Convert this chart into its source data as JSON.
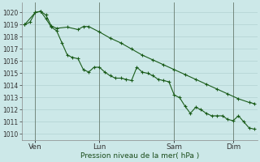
{
  "background_color": "#cce8e8",
  "grid_color": "#aacccc",
  "line_color": "#1a5c1a",
  "marker_color": "#1a5c1a",
  "xlabel": "Pression niveau de la mer( hPa )",
  "ylim": [
    1009.5,
    1020.8
  ],
  "yticks": [
    1010,
    1011,
    1012,
    1013,
    1014,
    1015,
    1016,
    1017,
    1018,
    1019,
    1020
  ],
  "xtick_labels": [
    "Ven",
    "Lun",
    "Sam",
    "Dim"
  ],
  "total_steps": 44,
  "vline_positions": [
    2,
    14,
    28,
    39
  ],
  "xtick_positions": [
    2,
    14,
    28,
    39
  ],
  "line1_x": [
    0,
    2,
    3,
    4,
    5,
    6,
    8,
    10,
    11,
    12,
    14,
    16,
    18,
    20,
    22,
    24,
    26,
    28,
    30,
    32,
    34,
    36,
    38,
    40,
    42,
    43
  ],
  "line1_y": [
    1019.0,
    1020.0,
    1020.1,
    1019.8,
    1018.9,
    1018.7,
    1018.8,
    1018.6,
    1018.85,
    1018.85,
    1018.4,
    1017.9,
    1017.5,
    1017.0,
    1016.5,
    1016.1,
    1015.7,
    1015.3,
    1014.9,
    1014.5,
    1014.1,
    1013.7,
    1013.3,
    1012.9,
    1012.6,
    1012.5
  ],
  "line2_x": [
    0,
    1,
    2,
    3,
    4,
    5,
    6,
    7,
    8,
    9,
    10,
    11,
    12,
    13,
    14,
    15,
    16,
    17,
    18,
    19,
    20,
    21,
    22,
    23,
    24,
    25,
    26,
    27,
    28,
    29,
    30,
    31,
    32,
    33,
    34,
    35,
    36,
    37,
    38,
    39,
    40,
    41,
    42,
    43
  ],
  "line2_y": [
    1019.0,
    1019.2,
    1020.0,
    1020.1,
    1019.5,
    1018.8,
    1018.5,
    1017.5,
    1016.5,
    1016.3,
    1016.2,
    1015.3,
    1015.1,
    1015.5,
    1015.5,
    1015.1,
    1014.8,
    1014.6,
    1014.6,
    1014.5,
    1014.4,
    1015.5,
    1015.1,
    1015.0,
    1014.8,
    1014.5,
    1014.4,
    1014.3,
    1013.2,
    1013.0,
    1012.3,
    1011.7,
    1012.2,
    1012.0,
    1011.7,
    1011.5,
    1011.5,
    1011.5,
    1011.2,
    1011.1,
    1011.5,
    1011.0,
    1010.5,
    1010.4
  ]
}
